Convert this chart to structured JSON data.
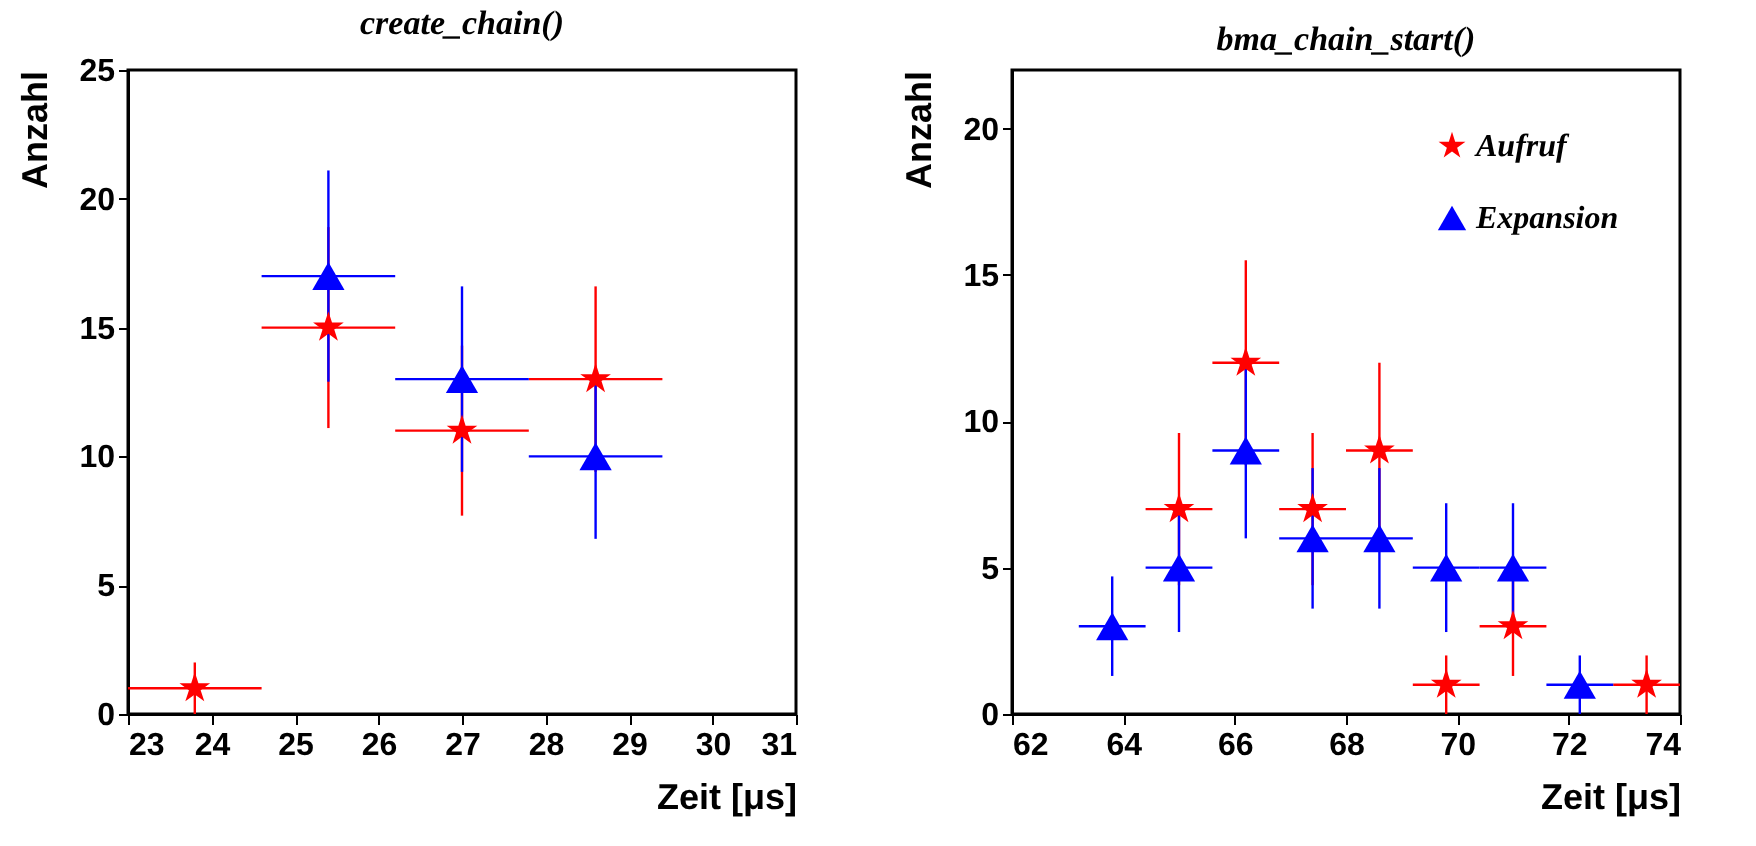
{
  "chart_data": [
    {
      "type": "scatter",
      "title": "create_chain()",
      "xlabel": "Zeit [μs]",
      "ylabel": "Anzahl",
      "xlim": [
        23,
        31
      ],
      "xticks": [
        23,
        24,
        25,
        26,
        27,
        28,
        29,
        30,
        31
      ],
      "ylim": [
        0,
        25
      ],
      "yticks": [
        0,
        5,
        10,
        15,
        20,
        25
      ],
      "series": [
        {
          "color": "#ff0000",
          "marker": "star",
          "x": [
            23.8,
            25.4,
            27.0,
            28.6
          ],
          "values": [
            1,
            15,
            11,
            13
          ],
          "errors": [
            1,
            3.9,
            3.3,
            3.6
          ],
          "xerrors": [
            0.8,
            0.8,
            0.8,
            0.8
          ]
        },
        {
          "color": "#0000ff",
          "marker": "triangle",
          "x": [
            25.4,
            27.0,
            28.6
          ],
          "values": [
            17,
            13,
            10
          ],
          "errors": [
            4.1,
            3.6,
            3.2
          ],
          "xerrors": [
            0.8,
            0.8,
            0.8
          ]
        }
      ]
    },
    {
      "type": "scatter",
      "title": "bma_chain_start()",
      "xlabel": "Zeit [μs]",
      "ylabel": "Anzahl",
      "xlim": [
        62,
        74
      ],
      "xticks": [
        62,
        64,
        66,
        68,
        70,
        72,
        74
      ],
      "ylim": [
        0,
        22
      ],
      "yticks": [
        0,
        5,
        10,
        15,
        20
      ],
      "legend": "top right",
      "series": [
        {
          "name": "Aufruf",
          "color": "#ff0000",
          "marker": "star",
          "x": [
            65.0,
            66.2,
            67.4,
            68.6,
            69.8,
            71.0,
            73.4
          ],
          "values": [
            7,
            12,
            7,
            9,
            1,
            3,
            1
          ],
          "errors": [
            2.6,
            3.5,
            2.6,
            3,
            1,
            1.7,
            1
          ],
          "xerrors": [
            0.6,
            0.6,
            0.6,
            0.6,
            0.6,
            0.6,
            0.6
          ]
        },
        {
          "name": "Expansion",
          "color": "#0000ff",
          "marker": "triangle",
          "x": [
            63.8,
            65.0,
            66.2,
            67.4,
            68.6,
            69.8,
            71.0,
            72.2
          ],
          "values": [
            3,
            5,
            9,
            6,
            6,
            5,
            5,
            1
          ],
          "errors": [
            1.7,
            2.2,
            3,
            2.4,
            2.4,
            2.2,
            2.2,
            1
          ],
          "xerrors": [
            0.6,
            0.6,
            0.6,
            0.6,
            0.6,
            0.6,
            0.6,
            0.6
          ]
        }
      ]
    }
  ]
}
